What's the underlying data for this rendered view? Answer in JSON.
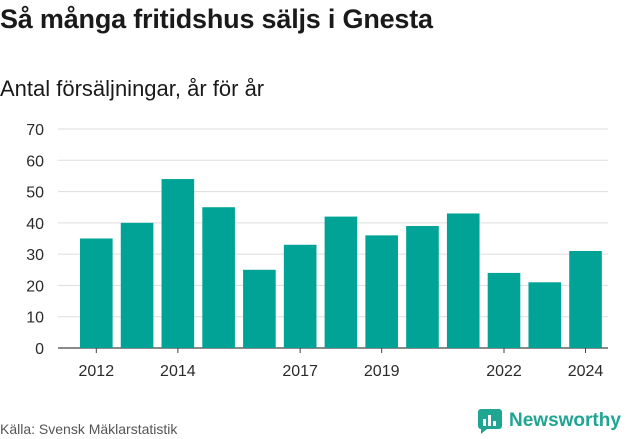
{
  "chart_data": {
    "type": "bar",
    "title": "Så många fritidshus säljs i Gnesta",
    "subtitle": "Antal försäljningar, år för år",
    "categories": [
      "2012",
      "2013",
      "2014",
      "2015",
      "2016",
      "2017",
      "2018",
      "2019",
      "2020",
      "2021",
      "2022",
      "2023",
      "2024"
    ],
    "values": [
      35,
      40,
      54,
      45,
      25,
      33,
      42,
      36,
      39,
      43,
      24,
      21,
      31
    ],
    "x_tick_labels": [
      "2012",
      "2014",
      "2017",
      "2019",
      "2022",
      "2024"
    ],
    "ylim": [
      0,
      70
    ],
    "y_ticks": [
      0,
      10,
      20,
      30,
      40,
      50,
      60,
      70
    ],
    "grid": true,
    "bar_color": "#00a396"
  },
  "footer": {
    "source": "Källa: Svensk Mäklarstatistik",
    "brand": "Newsworthy",
    "brand_icon": "newsworthy-logo-icon"
  }
}
